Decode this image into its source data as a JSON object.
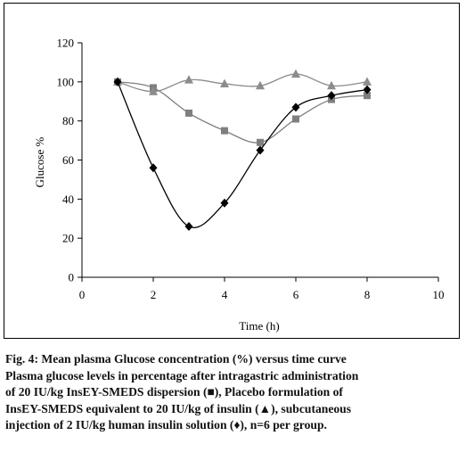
{
  "chart_data": {
    "type": "line",
    "xlabel": "Time (h)",
    "ylabel": "Glucose %",
    "xlim": [
      0,
      10
    ],
    "ylim": [
      0,
      120
    ],
    "x_ticks": [
      "0",
      "2",
      "4",
      "6",
      "8",
      "10"
    ],
    "y_ticks": [
      "0",
      "20",
      "40",
      "60",
      "80",
      "100",
      "120"
    ],
    "grid": false,
    "series": [
      {
        "marker": "square",
        "color": "#7f7f7f",
        "x": [
          1,
          2,
          3,
          4,
          5,
          6,
          7,
          8
        ],
        "y": [
          100,
          97,
          84,
          75,
          69,
          81,
          91,
          93
        ]
      },
      {
        "marker": "triangle",
        "color": "#8c8c8c",
        "x": [
          1,
          2,
          3,
          4,
          5,
          6,
          7,
          8
        ],
        "y": [
          100,
          95,
          101,
          99,
          98,
          104,
          98,
          100
        ]
      },
      {
        "marker": "diamond",
        "color": "#000000",
        "x": [
          1,
          2,
          3,
          4,
          5,
          6,
          7,
          8
        ],
        "y": [
          100,
          56,
          26,
          38,
          65,
          87,
          93,
          96
        ]
      }
    ]
  },
  "caption": {
    "line1": "Fig. 4: Mean plasma Glucose concentration (%) versus time curve",
    "line2": "Plasma glucose levels in percentage after intragastric administration",
    "line3": "of 20 IU/kg InsEY-SMEDS dispersion (■), Placebo formulation of",
    "line4": "InsEY-SMEDS equivalent to 20 IU/kg of insulin (▲), subcutaneous",
    "line5": "injection of 2 IU/kg human insulin solution (♦), n=6 per group."
  }
}
